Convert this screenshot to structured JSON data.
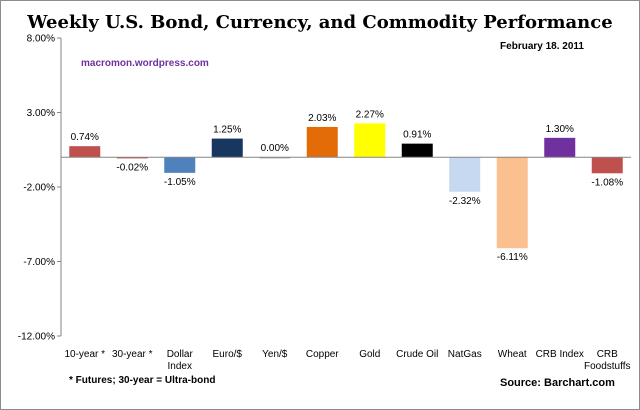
{
  "chart_data": {
    "type": "bar",
    "title": "Weekly U.S. Bond, Currency, and Commodity Performance",
    "date": "February 18. 2011",
    "watermark": "macromon.wordpress.com",
    "footnote": "* Futures; 30-year = Ultra-bond",
    "source": "Source:  Barchart.com",
    "ylim": [
      -12,
      8
    ],
    "yticks": [
      8,
      3,
      -2,
      -7,
      -12
    ],
    "ytick_labels": [
      "8.00%",
      "3.00%",
      "-2.00%",
      "-7.00%",
      "-12.00%"
    ],
    "grid": false,
    "categories": [
      [
        "10-year *"
      ],
      [
        "30-year *"
      ],
      [
        "Dollar",
        "Index"
      ],
      [
        "Euro/$"
      ],
      [
        "Yen/$"
      ],
      [
        "Copper"
      ],
      [
        "Gold"
      ],
      [
        "Crude Oil"
      ],
      [
        "NatGas"
      ],
      [
        "Wheat"
      ],
      [
        "CRB Index"
      ],
      [
        "CRB",
        "Foodstuffs"
      ]
    ],
    "values": [
      0.74,
      -0.02,
      -1.05,
      1.25,
      0.0,
      2.03,
      2.27,
      0.91,
      -2.32,
      -6.11,
      1.3,
      -1.08
    ],
    "data_labels": [
      "0.74%",
      "-0.02%",
      "-1.05%",
      "1.25%",
      "0.00%",
      "2.03%",
      "2.27%",
      "0.91%",
      "-2.32%",
      "-6.11%",
      "1.30%",
      "-1.08%"
    ],
    "colors": [
      "#c0504d",
      "#c0504d",
      "#4f81bd",
      "#17375e",
      "#a6a6a6",
      "#e36c09",
      "#ffff00",
      "#000000",
      "#c6d9f1",
      "#fac090",
      "#7030a0",
      "#c0504d"
    ]
  }
}
